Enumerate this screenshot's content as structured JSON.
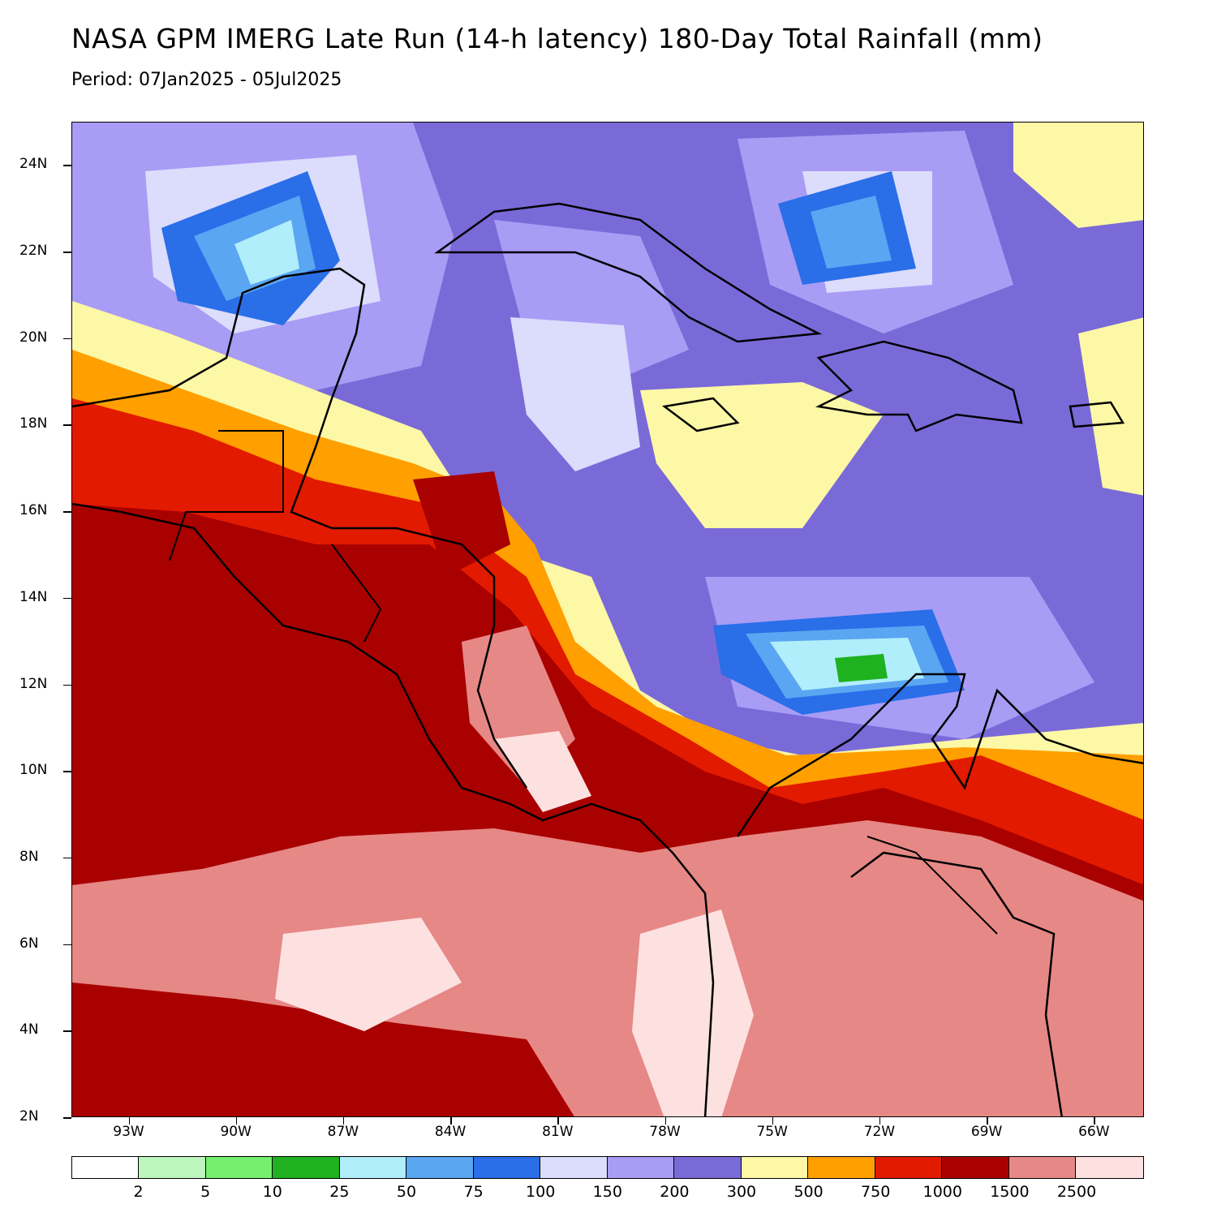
{
  "title": "NASA GPM IMERG Late Run (14-h latency) 180-Day Total Rainfall (mm)",
  "subtitle": "Period: 07Jan2025 - 05Jul2025",
  "map": {
    "type": "precipitation-contour-map",
    "lat_range": [
      2,
      25
    ],
    "lon_range": [
      -94.6,
      -64.6
    ],
    "lat_ticks": [
      "24N",
      "22N",
      "20N",
      "18N",
      "16N",
      "14N",
      "12N",
      "10N",
      "8N",
      "6N",
      "4N",
      "2N"
    ],
    "lon_ticks": [
      "93W",
      "90W",
      "87W",
      "84W",
      "81W",
      "78W",
      "75W",
      "72W",
      "69W",
      "66W"
    ]
  },
  "legend": {
    "colors": [
      "#ffffff",
      "#bef7be",
      "#77ef6e",
      "#1fb11f",
      "#b1eefb",
      "#5aa6f2",
      "#2a6ee8",
      "#dcdcfc",
      "#a89cf5",
      "#7a6ad8",
      "#fdf8a6",
      "#ff9f00",
      "#e21a00",
      "#a90000",
      "#e68886",
      "#fde1e1"
    ],
    "labels": [
      "2",
      "5",
      "10",
      "25",
      "50",
      "75",
      "100",
      "150",
      "200",
      "300",
      "500",
      "750",
      "1000",
      "1500",
      "2500"
    ]
  }
}
